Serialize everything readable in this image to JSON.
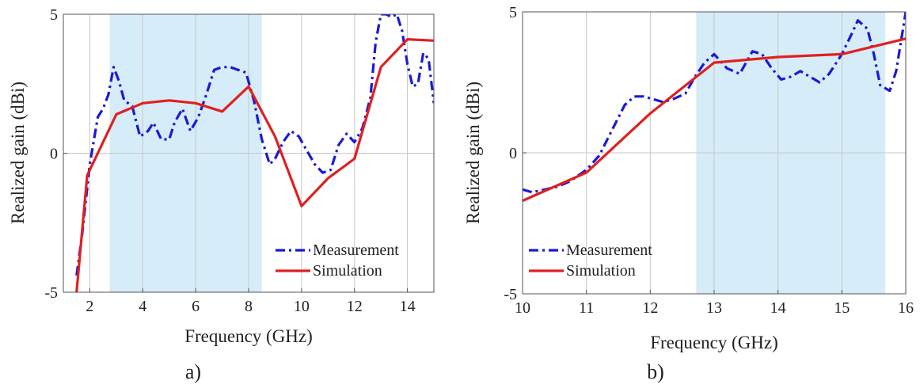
{
  "chart_data": [
    {
      "type": "line",
      "caption": "a)",
      "xlabel": "Frequency (GHz)",
      "ylabel": "Realized gain (dBi)",
      "xlim": [
        1,
        15
      ],
      "ylim": [
        -5,
        5
      ],
      "xticks": [
        2,
        4,
        6,
        8,
        10,
        12,
        14
      ],
      "yticks": [
        -5,
        0,
        5
      ],
      "grid": true,
      "legend_position": "bottom-right",
      "band": [
        2.75,
        8.5
      ],
      "colors": {
        "band": "#d6ecf8",
        "measurement": "#1a1ad6",
        "simulation": "#e02020"
      },
      "series": [
        {
          "name": "Measurement",
          "style": "dashdot",
          "x": [
            1.5,
            1.7,
            2.0,
            2.3,
            2.5,
            2.7,
            2.9,
            3.1,
            3.3,
            3.6,
            3.9,
            4.2,
            4.4,
            4.7,
            5.0,
            5.2,
            5.5,
            5.8,
            6.1,
            6.4,
            6.7,
            7.0,
            7.3,
            7.6,
            7.9,
            8.2,
            8.5,
            8.8,
            9.0,
            9.3,
            9.6,
            9.9,
            10.2,
            10.5,
            10.8,
            11.1,
            11.4,
            11.7,
            12.0,
            12.3,
            12.6,
            12.8,
            13.0,
            13.2,
            13.4,
            13.6,
            13.8,
            14.0,
            14.2,
            14.4,
            14.6,
            14.8,
            15.0
          ],
          "y": [
            -4.4,
            -3.0,
            -0.4,
            1.3,
            1.6,
            2.1,
            3.1,
            2.6,
            1.9,
            1.7,
            0.6,
            0.8,
            1.1,
            0.5,
            0.5,
            1.1,
            1.6,
            0.8,
            1.3,
            2.1,
            3.0,
            3.1,
            3.1,
            3.0,
            2.9,
            1.9,
            0.5,
            -0.4,
            -0.2,
            0.4,
            0.8,
            0.6,
            0.1,
            -0.4,
            -0.7,
            -0.6,
            0.3,
            0.7,
            0.4,
            0.9,
            2.0,
            4.0,
            5.0,
            5.0,
            4.9,
            5.0,
            4.4,
            3.2,
            2.4,
            2.5,
            3.6,
            3.4,
            1.8
          ]
        },
        {
          "name": "Simulation",
          "style": "solid",
          "x": [
            1.5,
            1.9,
            3.0,
            4.0,
            5.0,
            6.0,
            7.0,
            8.0,
            9.0,
            10.0,
            11.0,
            12.0,
            13.0,
            14.0,
            15.0
          ],
          "y": [
            -5.0,
            -0.8,
            1.4,
            1.8,
            1.9,
            1.8,
            1.5,
            2.4,
            0.6,
            -1.9,
            -0.9,
            -0.2,
            3.1,
            4.1,
            4.05
          ]
        }
      ]
    },
    {
      "type": "line",
      "caption": "b)",
      "xlabel": "Frequency (GHz)",
      "ylabel": "Realized gain (dBi)",
      "xlim": [
        10,
        16
      ],
      "ylim": [
        -5,
        5
      ],
      "xticks": [
        10,
        11,
        12,
        13,
        14,
        15,
        16
      ],
      "yticks": [
        -5,
        0,
        5
      ],
      "grid": true,
      "legend_position": "bottom-left",
      "band": [
        12.72,
        15.68
      ],
      "colors": {
        "band": "#d6ecf8",
        "measurement": "#1a1ad6",
        "simulation": "#e02020"
      },
      "series": [
        {
          "name": "Measurement",
          "style": "dashdot",
          "x": [
            10.0,
            10.15,
            10.35,
            10.55,
            10.75,
            11.0,
            11.2,
            11.4,
            11.6,
            11.75,
            11.9,
            12.05,
            12.2,
            12.35,
            12.55,
            12.7,
            12.85,
            13.0,
            13.2,
            13.4,
            13.6,
            13.75,
            13.9,
            14.05,
            14.2,
            14.35,
            14.5,
            14.65,
            14.8,
            15.0,
            15.15,
            15.25,
            15.4,
            15.5,
            15.6,
            15.75,
            15.85,
            15.95,
            16.0
          ],
          "y": [
            -1.3,
            -1.4,
            -1.3,
            -1.2,
            -1.0,
            -0.6,
            -0.1,
            0.8,
            1.7,
            2.0,
            2.0,
            1.9,
            1.8,
            1.9,
            2.1,
            2.7,
            3.2,
            3.5,
            3.0,
            2.8,
            3.6,
            3.5,
            3.0,
            2.6,
            2.7,
            2.9,
            2.7,
            2.5,
            2.8,
            3.5,
            4.2,
            4.7,
            4.4,
            3.5,
            2.4,
            2.2,
            2.9,
            4.3,
            5.0
          ]
        },
        {
          "name": "Simulation",
          "style": "solid",
          "x": [
            10.0,
            11.0,
            12.0,
            13.0,
            14.0,
            15.0,
            16.0
          ],
          "y": [
            -1.7,
            -0.7,
            1.4,
            3.2,
            3.4,
            3.5,
            4.05
          ]
        }
      ]
    }
  ]
}
